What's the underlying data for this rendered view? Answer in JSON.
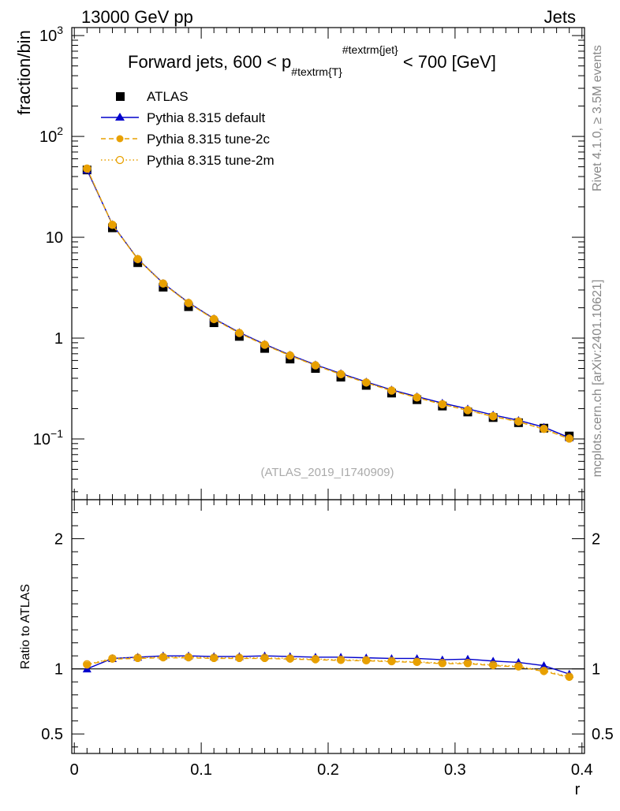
{
  "header": {
    "left": "13000 GeV pp",
    "right": "Jets"
  },
  "side_text": {
    "rivet": "Rivet 4.1.0, ≥ 3.5M events",
    "source": "mcplots.cern.ch [arXiv:2401.10621]"
  },
  "chart_data": {
    "type": "line",
    "title_parts": {
      "prefix": "Forward jets, 600 < p",
      "subscript": "#textrm{T}",
      "superscript": "#textrm{jet}",
      "suffix": " < 700 [GeV]"
    },
    "analysis_id": "(ATLAS_2019_I1740909)",
    "xlabel": "r",
    "ylabel_main": "fraction/bin",
    "ylabel_ratio": "Ratio to ATLAS",
    "xlim": [
      -0.002,
      0.402
    ],
    "ylim_main_log": [
      0.025,
      1200
    ],
    "ylim_ratio": [
      0.35,
      2.3
    ],
    "x_ticks": [
      0,
      0.1,
      0.2,
      0.3,
      0.4
    ],
    "x_tick_labels": [
      "0",
      "0.1",
      "0.2",
      "0.3",
      "0.4"
    ],
    "main_tick_labels": [
      {
        "value": 0.1,
        "base": "10",
        "exp": "−1"
      },
      {
        "value": 1,
        "base": "1",
        "exp": ""
      },
      {
        "value": 10,
        "base": "10",
        "exp": ""
      },
      {
        "value": 100,
        "base": "10",
        "exp": "2"
      },
      {
        "value": 1000,
        "base": "10",
        "exp": "3"
      }
    ],
    "ratio_tick_labels": [
      {
        "value": 0.5,
        "label": "0.5"
      },
      {
        "value": 1,
        "label": "1"
      },
      {
        "value": 2,
        "label": "2"
      }
    ],
    "x": [
      0.01,
      0.03,
      0.05,
      0.07,
      0.09,
      0.11,
      0.13,
      0.15,
      0.17,
      0.19,
      0.21,
      0.23,
      0.25,
      0.27,
      0.29,
      0.31,
      0.33,
      0.35,
      0.37,
      0.39
    ],
    "data": {
      "name": "ATLAS",
      "values": [
        46.5,
        12.4,
        5.6,
        3.2,
        2.05,
        1.42,
        1.04,
        0.79,
        0.62,
        0.5,
        0.41,
        0.34,
        0.285,
        0.245,
        0.212,
        0.185,
        0.163,
        0.145,
        0.128,
        0.107
      ]
    },
    "series": [
      {
        "name": "Pythia 8.315 default",
        "color": "#0000cc",
        "style": "solid",
        "marker": "triangle",
        "values": [
          46.5,
          13.4,
          6.1,
          3.5,
          2.25,
          1.56,
          1.14,
          0.87,
          0.68,
          0.545,
          0.446,
          0.368,
          0.307,
          0.263,
          0.227,
          0.199,
          0.173,
          0.153,
          0.131,
          0.103
        ],
        "ratio": [
          1.0,
          1.08,
          1.09,
          1.1,
          1.1,
          1.095,
          1.095,
          1.1,
          1.095,
          1.09,
          1.09,
          1.085,
          1.08,
          1.08,
          1.07,
          1.075,
          1.06,
          1.05,
          1.025,
          0.96
        ]
      },
      {
        "name": "Pythia 8.315 tune-2c",
        "color": "#e8a000",
        "style": "dashed",
        "marker": "circle-filled",
        "values": [
          48.0,
          13.3,
          6.05,
          3.47,
          2.22,
          1.54,
          1.12,
          0.855,
          0.67,
          0.535,
          0.437,
          0.361,
          0.3,
          0.257,
          0.22,
          0.192,
          0.167,
          0.148,
          0.125,
          0.1
        ],
        "ratio": [
          1.03,
          1.075,
          1.08,
          1.085,
          1.085,
          1.08,
          1.08,
          1.08,
          1.075,
          1.07,
          1.065,
          1.062,
          1.055,
          1.05,
          1.04,
          1.04,
          1.025,
          1.015,
          0.98,
          0.935
        ]
      },
      {
        "name": "Pythia 8.315 tune-2m",
        "color": "#e8a000",
        "style": "dotted",
        "marker": "circle-open",
        "values": [
          48.0,
          13.3,
          6.08,
          3.48,
          2.23,
          1.545,
          1.125,
          0.86,
          0.673,
          0.537,
          0.439,
          0.363,
          0.302,
          0.258,
          0.221,
          0.193,
          0.168,
          0.149,
          0.126,
          0.101
        ],
        "ratio": [
          1.035,
          1.08,
          1.085,
          1.09,
          1.09,
          1.085,
          1.085,
          1.085,
          1.08,
          1.075,
          1.07,
          1.066,
          1.06,
          1.054,
          1.045,
          1.045,
          1.03,
          1.02,
          0.985,
          0.94
        ]
      }
    ]
  }
}
